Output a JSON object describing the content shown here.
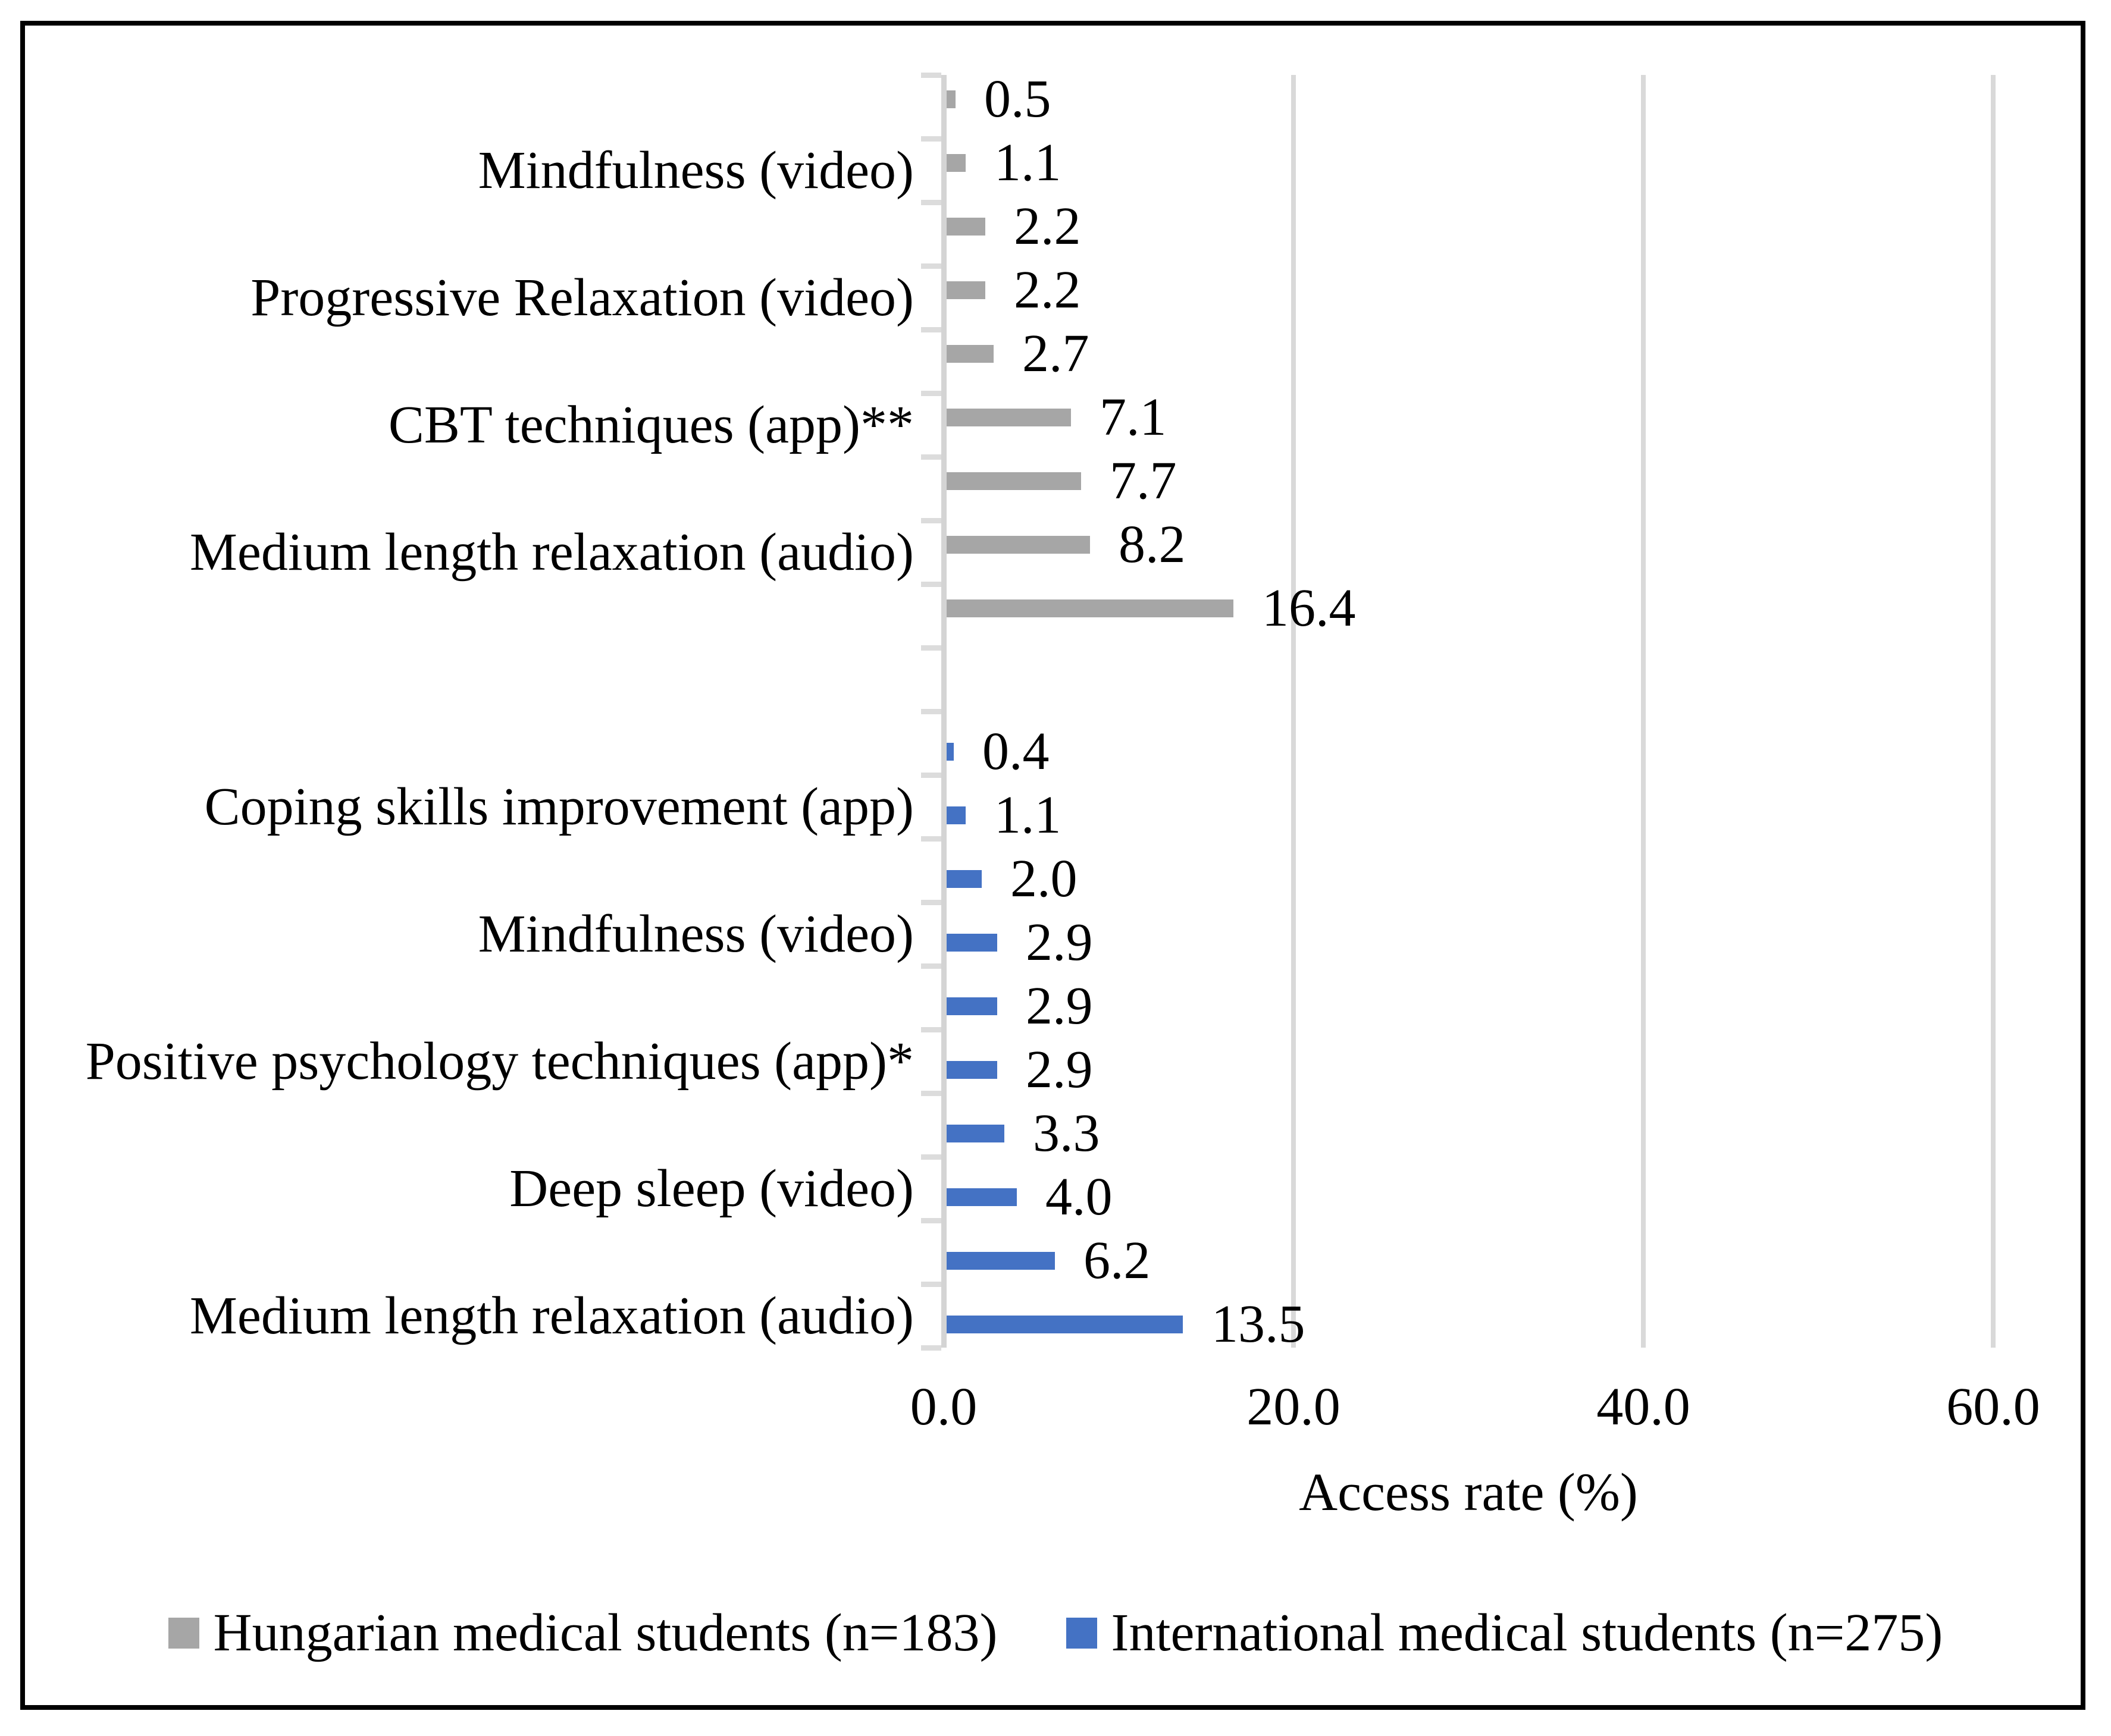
{
  "chart_data": {
    "type": "bar",
    "orientation": "horizontal",
    "title": "",
    "xlabel": "Access rate (%)",
    "ylabel": "",
    "xlim": [
      0,
      60
    ],
    "x_ticks": [
      "0.0",
      "20.0",
      "40.0",
      "60.0"
    ],
    "x_tick_values": [
      0,
      20,
      40,
      60
    ],
    "grid": "vertical-light-gray",
    "legend_position": "bottom",
    "value_labels": "outside-end, one decimal",
    "series": [
      {
        "name": "Hungarian medical students (n=183)",
        "color": "#a6a6a6",
        "bars": [
          {
            "label": "",
            "value": 0.5
          },
          {
            "label": "Mindfulness (video)",
            "value": 1.1
          },
          {
            "label": "",
            "value": 2.2
          },
          {
            "label": "Progressive Relaxation (video)",
            "value": 2.2
          },
          {
            "label": "",
            "value": 2.7
          },
          {
            "label": "CBT techniques (app)**",
            "value": 7.1
          },
          {
            "label": "",
            "value": 7.7
          },
          {
            "label": "Medium length relaxation (audio)",
            "value": 8.2
          },
          {
            "label": "",
            "value": 16.4
          }
        ]
      },
      {
        "name": "International medical students (n=275)",
        "color": "#4472c4",
        "bars": [
          {
            "label": "",
            "value": 0.4
          },
          {
            "label": "Coping skills improvement (app)",
            "value": 1.1
          },
          {
            "label": "",
            "value": 2.0
          },
          {
            "label": "Mindfulness (video)",
            "value": 2.9
          },
          {
            "label": "",
            "value": 2.9
          },
          {
            "label": "Positive psychology techniques (app)*",
            "value": 2.9
          },
          {
            "label": "",
            "value": 3.3
          },
          {
            "label": "Deep sleep (video)",
            "value": 4.0
          },
          {
            "label": "",
            "value": 6.2
          },
          {
            "label": "Medium length relaxation (audio)",
            "value": 13.5
          }
        ]
      }
    ]
  }
}
